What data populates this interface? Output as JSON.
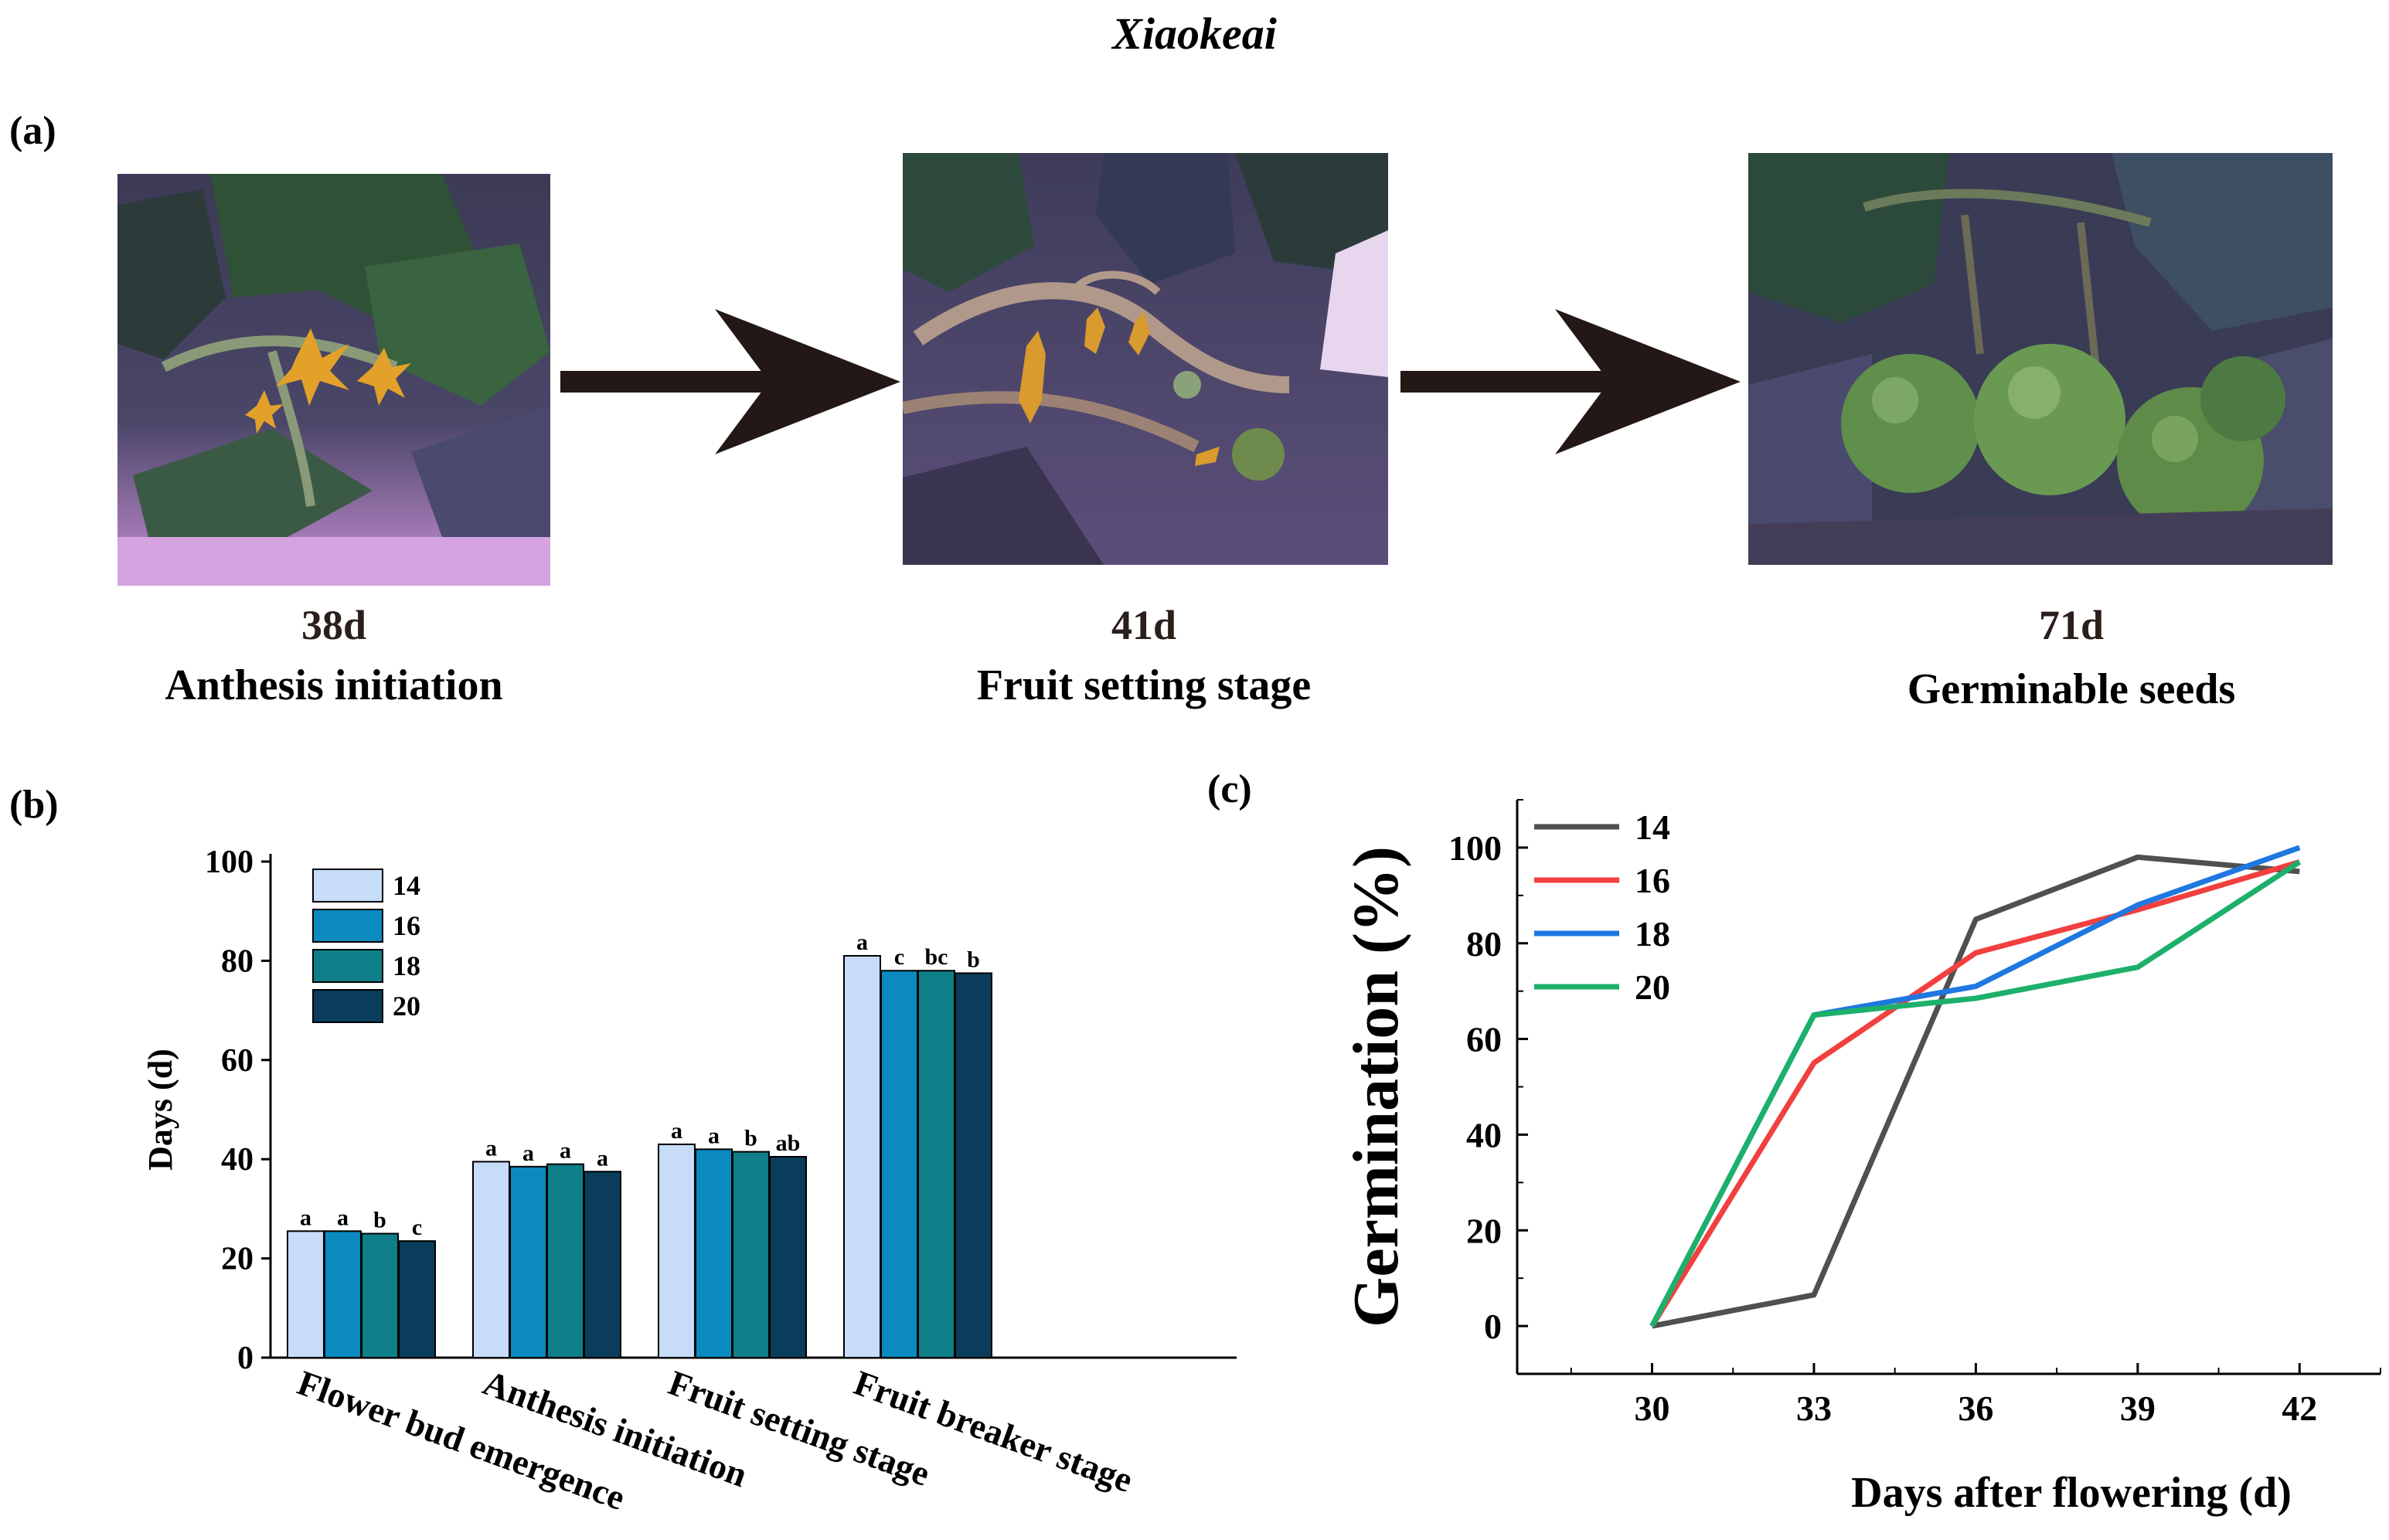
{
  "title": "Xiaokeai",
  "panels": {
    "a": "(a)",
    "b": "(b)",
    "c": "(c)"
  },
  "photos": [
    {
      "day": "38d",
      "stage": "Anthesis initiation"
    },
    {
      "day": "41d",
      "stage": "Fruit setting stage"
    },
    {
      "day": "71d",
      "stage": "Germinable seeds"
    }
  ],
  "colors": {
    "s14_bar": "#c6dcf7",
    "s16_bar": "#0b8ac0",
    "s18_bar": "#0e7f88",
    "s20_bar": "#0a3d5c",
    "s14_line": "#505050",
    "s16_line": "#f1403f",
    "s18_line": "#1f77e0",
    "s20_line": "#1db06a",
    "arrow": "#231815"
  },
  "chart_data": [
    {
      "type": "bar",
      "ylabel": "Days (d)",
      "ylim": [
        0,
        100
      ],
      "yticks": [
        "0",
        "20",
        "40",
        "60",
        "80",
        "100"
      ],
      "categories": [
        "Flower bud emergence",
        "Anthesis initiation",
        "Fruit setting stage",
        "Fruit breaker stage"
      ],
      "series": [
        {
          "name": "14",
          "values": [
            25.5,
            39.5,
            43,
            81
          ],
          "letters": [
            "a",
            "a",
            "a",
            "a"
          ]
        },
        {
          "name": "16",
          "values": [
            25.5,
            38.5,
            42,
            78
          ],
          "letters": [
            "a",
            "a",
            "a",
            "c"
          ]
        },
        {
          "name": "18",
          "values": [
            25,
            39,
            41.5,
            78
          ],
          "letters": [
            "b",
            "a",
            "b",
            "bc"
          ]
        },
        {
          "name": "20",
          "values": [
            23.5,
            37.5,
            40.5,
            77.5
          ],
          "letters": [
            "c",
            "a",
            "ab",
            "b"
          ]
        }
      ],
      "legend": "top-left"
    },
    {
      "type": "line",
      "xlabel": "Days after flowering (d)",
      "ylabel": "Germination (%)",
      "x": [
        30,
        33,
        36,
        39,
        42
      ],
      "xticks": [
        "30",
        "33",
        "36",
        "39",
        "42"
      ],
      "yticks": [
        "0",
        "20",
        "40",
        "60",
        "80",
        "100"
      ],
      "ylim": [
        -10,
        110
      ],
      "xlim": [
        27.5,
        43.5
      ],
      "series": [
        {
          "name": "14",
          "values": [
            0,
            6.5,
            85,
            98,
            95
          ]
        },
        {
          "name": "16",
          "values": [
            0,
            55,
            78,
            87,
            97
          ]
        },
        {
          "name": "18",
          "values": [
            0,
            65,
            71,
            88,
            100
          ]
        },
        {
          "name": "20",
          "values": [
            0,
            65,
            68.5,
            75,
            97
          ]
        }
      ],
      "legend": "top-left"
    }
  ]
}
